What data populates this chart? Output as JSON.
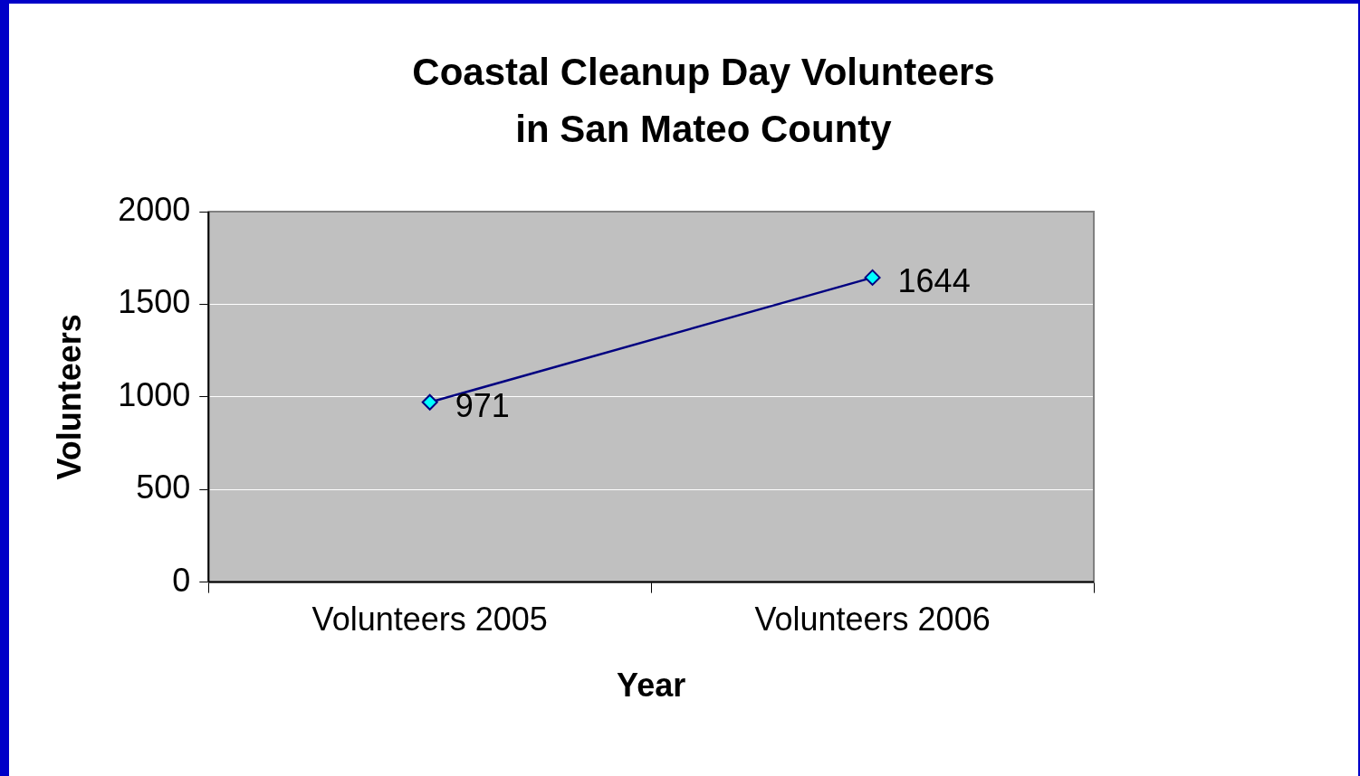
{
  "chart_data": {
    "type": "line",
    "title": "Coastal Cleanup Day Volunteers\nin San Mateo County",
    "xlabel": "Year",
    "ylabel": "Volunteers",
    "categories": [
      "Volunteers 2005",
      "Volunteers 2006"
    ],
    "series": [
      {
        "color": "#000080",
        "values": [
          971,
          1644
        ]
      }
    ],
    "ylim": [
      0,
      2000
    ],
    "yticks": [
      0,
      500,
      1000,
      1500,
      2000
    ],
    "grid": "y",
    "marker": "diamond",
    "line_style": "solid",
    "data_labels": true
  }
}
